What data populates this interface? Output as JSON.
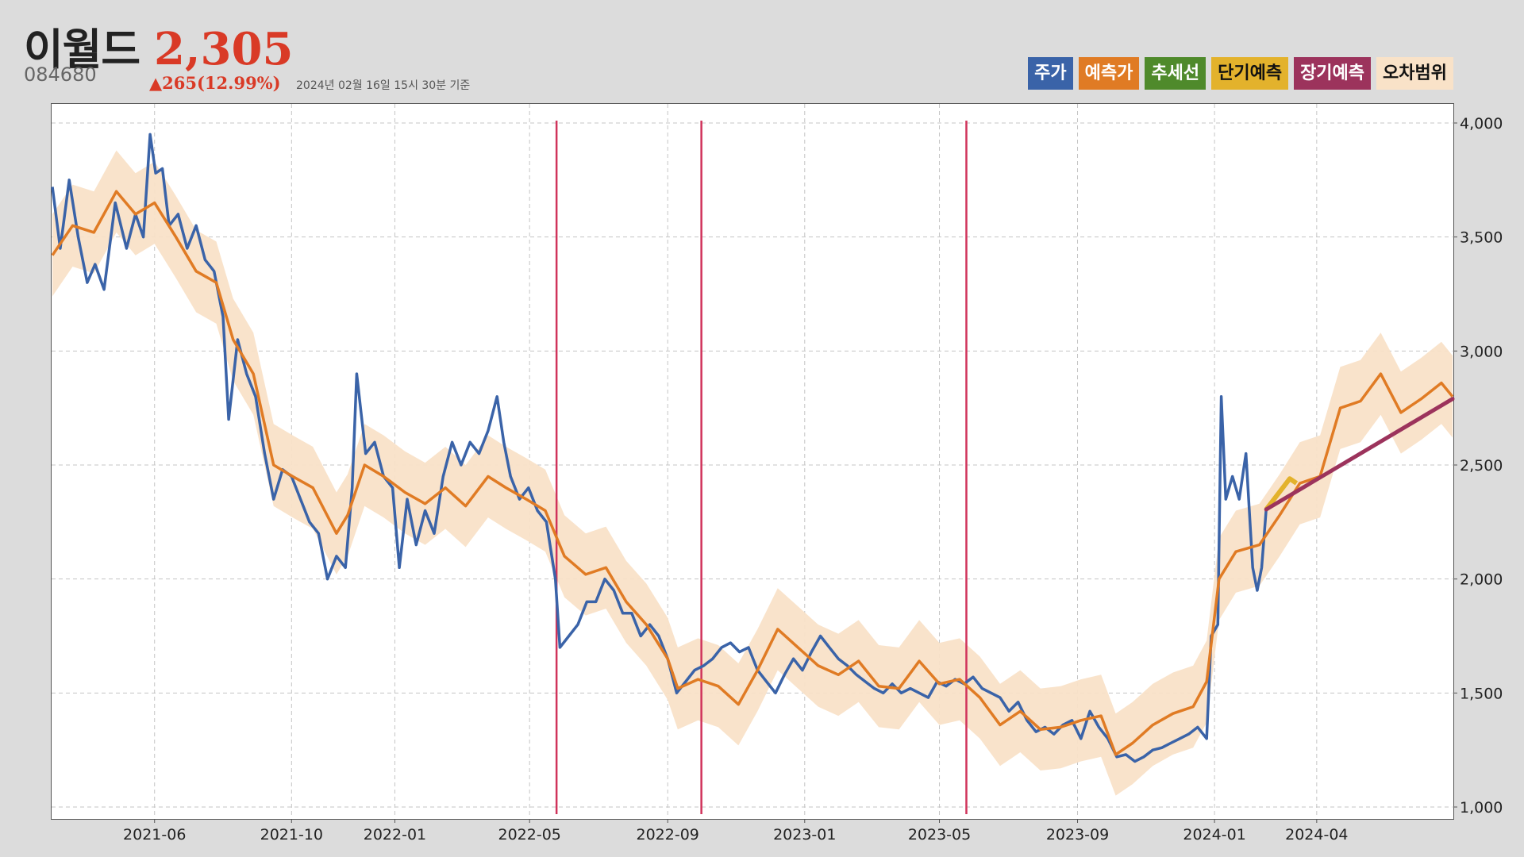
{
  "header": {
    "name": "이월드",
    "price": "2,305",
    "code": "084680",
    "change": "▲265(12.99%)",
    "asof": "2024년 02월 16일 15시 30분 기준"
  },
  "legend": [
    {
      "label": "주가",
      "color": "#3a63a8",
      "text_color": "#ffffff"
    },
    {
      "label": "예측가",
      "color": "#e07b24",
      "text_color": "#ffffff"
    },
    {
      "label": "추세선",
      "color": "#4f8a2b",
      "text_color": "#ffffff"
    },
    {
      "label": "단기예측",
      "color": "#e3b22c",
      "text_color": "#111111"
    },
    {
      "label": "장기예측",
      "color": "#9c335c",
      "text_color": "#ffffff"
    },
    {
      "label": "오차범위",
      "color": "#f9e2c8",
      "text_color": "#111111"
    }
  ],
  "chart_data": {
    "type": "line",
    "x_start": "2021-03-02",
    "x_end": "2024-07-31",
    "ylim": [
      1000,
      4000
    ],
    "y_ticks": [
      "1,000",
      "1,500",
      "2,000",
      "2,500",
      "3,000",
      "3,500",
      "4,000"
    ],
    "x_ticks": [
      {
        "label": "2021-06",
        "date": "2021-06-01"
      },
      {
        "label": "2021-10",
        "date": "2021-10-01"
      },
      {
        "label": "2022-01",
        "date": "2022-01-01"
      },
      {
        "label": "2022-05",
        "date": "2022-05-01"
      },
      {
        "label": "2022-09",
        "date": "2022-09-01"
      },
      {
        "label": "2023-01",
        "date": "2023-01-01"
      },
      {
        "label": "2023-05",
        "date": "2023-05-01"
      },
      {
        "label": "2023-09",
        "date": "2023-09-01"
      },
      {
        "label": "2024-01",
        "date": "2024-01-01"
      },
      {
        "label": "2024-04",
        "date": "2024-04-01"
      }
    ],
    "grid": true,
    "series": [
      {
        "name": "주가",
        "color": "#3a63a8",
        "points": [
          [
            "2021-03-02",
            3720
          ],
          [
            "2021-03-09",
            3450
          ],
          [
            "2021-03-17",
            3750
          ],
          [
            "2021-03-25",
            3500
          ],
          [
            "2021-04-02",
            3300
          ],
          [
            "2021-04-09",
            3380
          ],
          [
            "2021-04-17",
            3270
          ],
          [
            "2021-04-27",
            3650
          ],
          [
            "2021-05-07",
            3450
          ],
          [
            "2021-05-15",
            3600
          ],
          [
            "2021-05-22",
            3500
          ],
          [
            "2021-05-28",
            3950
          ],
          [
            "2021-06-02",
            3780
          ],
          [
            "2021-06-08",
            3800
          ],
          [
            "2021-06-14",
            3550
          ],
          [
            "2021-06-22",
            3600
          ],
          [
            "2021-06-30",
            3450
          ],
          [
            "2021-07-08",
            3550
          ],
          [
            "2021-07-16",
            3400
          ],
          [
            "2021-07-24",
            3350
          ],
          [
            "2021-08-01",
            3150
          ],
          [
            "2021-08-06",
            2700
          ],
          [
            "2021-08-14",
            3050
          ],
          [
            "2021-08-22",
            2900
          ],
          [
            "2021-08-30",
            2800
          ],
          [
            "2021-09-07",
            2550
          ],
          [
            "2021-09-15",
            2350
          ],
          [
            "2021-09-23",
            2480
          ],
          [
            "2021-10-01",
            2450
          ],
          [
            "2021-10-09",
            2350
          ],
          [
            "2021-10-17",
            2250
          ],
          [
            "2021-10-25",
            2200
          ],
          [
            "2021-11-02",
            2000
          ],
          [
            "2021-11-10",
            2100
          ],
          [
            "2021-11-18",
            2050
          ],
          [
            "2021-11-24",
            2400
          ],
          [
            "2021-11-28",
            2900
          ],
          [
            "2021-12-06",
            2550
          ],
          [
            "2021-12-14",
            2600
          ],
          [
            "2021-12-22",
            2450
          ],
          [
            "2021-12-30",
            2400
          ],
          [
            "2022-01-05",
            2050
          ],
          [
            "2022-01-12",
            2350
          ],
          [
            "2022-01-20",
            2150
          ],
          [
            "2022-01-28",
            2300
          ],
          [
            "2022-02-05",
            2200
          ],
          [
            "2022-02-13",
            2450
          ],
          [
            "2022-02-21",
            2600
          ],
          [
            "2022-03-01",
            2500
          ],
          [
            "2022-03-09",
            2600
          ],
          [
            "2022-03-17",
            2550
          ],
          [
            "2022-03-25",
            2650
          ],
          [
            "2022-04-02",
            2800
          ],
          [
            "2022-04-08",
            2600
          ],
          [
            "2022-04-14",
            2450
          ],
          [
            "2022-04-22",
            2350
          ],
          [
            "2022-04-30",
            2400
          ],
          [
            "2022-05-08",
            2300
          ],
          [
            "2022-05-16",
            2250
          ],
          [
            "2022-05-24",
            2000
          ],
          [
            "2022-05-28",
            1700
          ],
          [
            "2022-06-05",
            1750
          ],
          [
            "2022-06-13",
            1800
          ],
          [
            "2022-06-21",
            1900
          ],
          [
            "2022-06-29",
            1900
          ],
          [
            "2022-07-07",
            2000
          ],
          [
            "2022-07-15",
            1950
          ],
          [
            "2022-07-23",
            1850
          ],
          [
            "2022-07-31",
            1850
          ],
          [
            "2022-08-08",
            1750
          ],
          [
            "2022-08-16",
            1800
          ],
          [
            "2022-08-24",
            1750
          ],
          [
            "2022-09-01",
            1650
          ],
          [
            "2022-09-09",
            1500
          ],
          [
            "2022-09-17",
            1550
          ],
          [
            "2022-09-25",
            1600
          ],
          [
            "2022-10-03",
            1620
          ],
          [
            "2022-10-11",
            1650
          ],
          [
            "2022-10-19",
            1700
          ],
          [
            "2022-10-27",
            1720
          ],
          [
            "2022-11-04",
            1680
          ],
          [
            "2022-11-12",
            1700
          ],
          [
            "2022-11-20",
            1600
          ],
          [
            "2022-11-28",
            1550
          ],
          [
            "2022-12-06",
            1500
          ],
          [
            "2022-12-14",
            1580
          ],
          [
            "2022-12-22",
            1650
          ],
          [
            "2022-12-30",
            1600
          ],
          [
            "2023-01-07",
            1680
          ],
          [
            "2023-01-15",
            1750
          ],
          [
            "2023-01-23",
            1700
          ],
          [
            "2023-01-31",
            1650
          ],
          [
            "2023-02-08",
            1620
          ],
          [
            "2023-02-16",
            1580
          ],
          [
            "2023-02-24",
            1550
          ],
          [
            "2023-03-04",
            1520
          ],
          [
            "2023-03-12",
            1500
          ],
          [
            "2023-03-20",
            1540
          ],
          [
            "2023-03-28",
            1500
          ],
          [
            "2023-04-05",
            1520
          ],
          [
            "2023-04-13",
            1500
          ],
          [
            "2023-04-21",
            1480
          ],
          [
            "2023-04-29",
            1550
          ],
          [
            "2023-05-07",
            1530
          ],
          [
            "2023-05-15",
            1560
          ],
          [
            "2023-05-23",
            1540
          ],
          [
            "2023-05-31",
            1570
          ],
          [
            "2023-06-08",
            1520
          ],
          [
            "2023-06-16",
            1500
          ],
          [
            "2023-06-24",
            1480
          ],
          [
            "2023-07-02",
            1420
          ],
          [
            "2023-07-10",
            1460
          ],
          [
            "2023-07-18",
            1380
          ],
          [
            "2023-07-26",
            1330
          ],
          [
            "2023-08-03",
            1350
          ],
          [
            "2023-08-11",
            1320
          ],
          [
            "2023-08-19",
            1360
          ],
          [
            "2023-08-27",
            1380
          ],
          [
            "2023-09-04",
            1300
          ],
          [
            "2023-09-12",
            1420
          ],
          [
            "2023-09-20",
            1350
          ],
          [
            "2023-09-28",
            1300
          ],
          [
            "2023-10-06",
            1220
          ],
          [
            "2023-10-14",
            1230
          ],
          [
            "2023-10-22",
            1200
          ],
          [
            "2023-10-30",
            1220
          ],
          [
            "2023-11-07",
            1250
          ],
          [
            "2023-11-15",
            1260
          ],
          [
            "2023-11-23",
            1280
          ],
          [
            "2023-12-01",
            1300
          ],
          [
            "2023-12-09",
            1320
          ],
          [
            "2023-12-17",
            1350
          ],
          [
            "2023-12-25",
            1300
          ],
          [
            "2023-12-29",
            1750
          ],
          [
            "2024-01-04",
            1800
          ],
          [
            "2024-01-07",
            2800
          ],
          [
            "2024-01-11",
            2350
          ],
          [
            "2024-01-17",
            2450
          ],
          [
            "2024-01-23",
            2350
          ],
          [
            "2024-01-29",
            2550
          ],
          [
            "2024-02-04",
            2050
          ],
          [
            "2024-02-08",
            1950
          ],
          [
            "2024-02-12",
            2050
          ],
          [
            "2024-02-16",
            2305
          ]
        ]
      },
      {
        "name": "예측가",
        "color": "#e07b24",
        "points": [
          [
            "2021-03-02",
            3420
          ],
          [
            "2021-03-20",
            3550
          ],
          [
            "2021-04-08",
            3520
          ],
          [
            "2021-04-28",
            3700
          ],
          [
            "2021-05-15",
            3600
          ],
          [
            "2021-06-01",
            3650
          ],
          [
            "2021-06-20",
            3500
          ],
          [
            "2021-07-08",
            3350
          ],
          [
            "2021-07-26",
            3300
          ],
          [
            "2021-08-10",
            3050
          ],
          [
            "2021-08-28",
            2900
          ],
          [
            "2021-09-15",
            2500
          ],
          [
            "2021-10-02",
            2450
          ],
          [
            "2021-10-20",
            2400
          ],
          [
            "2021-11-10",
            2200
          ],
          [
            "2021-11-20",
            2280
          ],
          [
            "2021-12-05",
            2500
          ],
          [
            "2021-12-22",
            2450
          ],
          [
            "2022-01-10",
            2380
          ],
          [
            "2022-01-28",
            2330
          ],
          [
            "2022-02-15",
            2400
          ],
          [
            "2022-03-05",
            2320
          ],
          [
            "2022-03-25",
            2450
          ],
          [
            "2022-04-10",
            2400
          ],
          [
            "2022-04-28",
            2350
          ],
          [
            "2022-05-15",
            2300
          ],
          [
            "2022-06-01",
            2100
          ],
          [
            "2022-06-20",
            2020
          ],
          [
            "2022-07-08",
            2050
          ],
          [
            "2022-07-26",
            1900
          ],
          [
            "2022-08-13",
            1800
          ],
          [
            "2022-09-01",
            1650
          ],
          [
            "2022-09-10",
            1520
          ],
          [
            "2022-09-28",
            1560
          ],
          [
            "2022-10-16",
            1530
          ],
          [
            "2022-11-03",
            1450
          ],
          [
            "2022-11-20",
            1600
          ],
          [
            "2022-12-08",
            1780
          ],
          [
            "2022-12-26",
            1700
          ],
          [
            "2023-01-13",
            1620
          ],
          [
            "2023-01-31",
            1580
          ],
          [
            "2023-02-18",
            1640
          ],
          [
            "2023-03-08",
            1530
          ],
          [
            "2023-03-26",
            1520
          ],
          [
            "2023-04-13",
            1640
          ],
          [
            "2023-05-01",
            1540
          ],
          [
            "2023-05-19",
            1560
          ],
          [
            "2023-06-06",
            1480
          ],
          [
            "2023-06-24",
            1360
          ],
          [
            "2023-07-12",
            1420
          ],
          [
            "2023-07-30",
            1340
          ],
          [
            "2023-08-17",
            1350
          ],
          [
            "2023-09-04",
            1380
          ],
          [
            "2023-09-22",
            1400
          ],
          [
            "2023-10-05",
            1230
          ],
          [
            "2023-10-20",
            1280
          ],
          [
            "2023-11-07",
            1360
          ],
          [
            "2023-11-25",
            1410
          ],
          [
            "2023-12-13",
            1440
          ],
          [
            "2023-12-25",
            1550
          ],
          [
            "2024-01-05",
            2000
          ],
          [
            "2024-01-20",
            2120
          ],
          [
            "2024-02-10",
            2150
          ],
          [
            "2024-02-28",
            2280
          ],
          [
            "2024-03-17",
            2420
          ],
          [
            "2024-04-04",
            2450
          ],
          [
            "2024-04-22",
            2750
          ],
          [
            "2024-05-10",
            2780
          ],
          [
            "2024-05-28",
            2900
          ],
          [
            "2024-06-15",
            2730
          ],
          [
            "2024-07-03",
            2790
          ],
          [
            "2024-07-21",
            2860
          ],
          [
            "2024-07-31",
            2800
          ]
        ]
      },
      {
        "name": "단기예측",
        "color": "#e3b22c",
        "points": [
          [
            "2024-02-16",
            2305
          ],
          [
            "2024-03-08",
            2440
          ],
          [
            "2024-03-14",
            2420
          ]
        ]
      },
      {
        "name": "장기예측",
        "color": "#9c335c",
        "points": [
          [
            "2024-02-16",
            2305
          ],
          [
            "2024-07-31",
            2790
          ]
        ]
      }
    ],
    "error_band_halfwidth": 180,
    "vertical_markers": [
      {
        "date": "2022-05-25",
        "color": "#d0335b"
      },
      {
        "date": "2022-10-01",
        "color": "#d0335b"
      },
      {
        "date": "2023-05-25",
        "color": "#d0335b"
      }
    ]
  }
}
